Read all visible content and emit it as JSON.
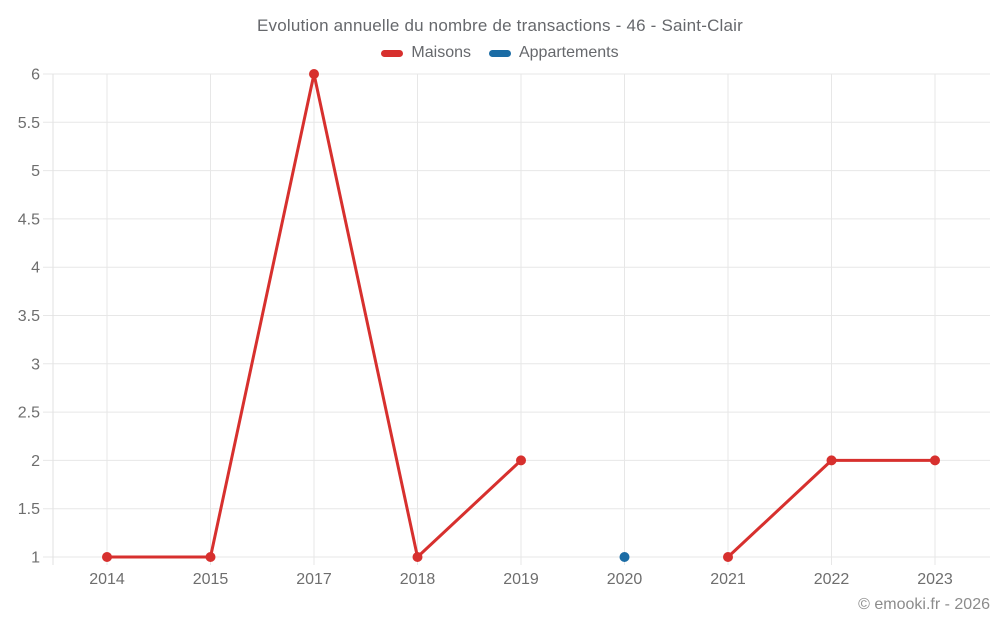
{
  "title": "Evolution annuelle du nombre de transactions - 46 - Saint-Clair",
  "watermark": "© emooki.fr - 2026",
  "colors": {
    "maisons": "#d7302e",
    "appartements": "#1b6ca5",
    "title_text": "#66686c",
    "tick_text": "#6e6e6e",
    "grid": "#e7e7e7",
    "axis_line": "#e2e2e2",
    "watermark_text": "#8c8c8c",
    "background": "#ffffff"
  },
  "chart_data": {
    "type": "line",
    "title": "Evolution annuelle du nombre de transactions - 46 - Saint-Clair",
    "categories": [
      "2014",
      "2015",
      "2017",
      "2018",
      "2019",
      "2020",
      "2021",
      "2022",
      "2023"
    ],
    "series": [
      {
        "name": "Maisons",
        "color": "#d7302e",
        "values": [
          1,
          1,
          6,
          1,
          2,
          null,
          1,
          2,
          2
        ]
      },
      {
        "name": "Appartements",
        "color": "#1b6ca5",
        "values": [
          null,
          null,
          null,
          null,
          null,
          1,
          null,
          null,
          null
        ]
      }
    ],
    "xlabel": "",
    "ylabel": "",
    "ylim": [
      1,
      6
    ],
    "yticks": [
      1,
      1.5,
      2,
      2.5,
      3,
      3.5,
      4,
      4.5,
      5,
      5.5,
      6
    ],
    "grid": true,
    "legend_position": "top"
  }
}
